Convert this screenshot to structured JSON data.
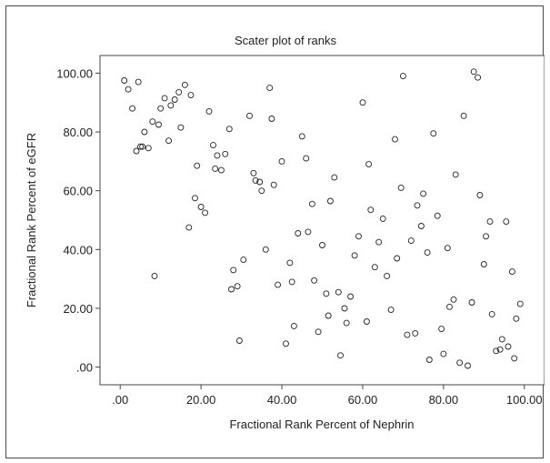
{
  "chart_data": {
    "type": "scatter",
    "title": "Scater plot of ranks",
    "xlabel": "Fractional Rank Percent of Nephrin",
    "ylabel": "Fractional Rank Percent of eGFR",
    "xlim": [
      -5,
      105
    ],
    "ylim": [
      -6,
      106
    ],
    "xticks": [
      0,
      20,
      40,
      60,
      80,
      100
    ],
    "yticks": [
      0,
      20,
      40,
      60,
      80,
      100
    ],
    "xtick_labels": [
      ".00",
      "20.00",
      "40.00",
      "60.00",
      "80.00",
      "100.00"
    ],
    "ytick_labels": [
      ".00",
      "20.00",
      "40.00",
      "60.00",
      "80.00",
      "100.00"
    ],
    "grid": false,
    "marker": "open-circle",
    "marker_color": "#222222",
    "series": [
      {
        "points": [
          [
            1,
            97.5
          ],
          [
            2,
            94.5
          ],
          [
            3,
            88
          ],
          [
            4,
            73.5
          ],
          [
            4.5,
            97
          ],
          [
            5,
            75
          ],
          [
            5.5,
            75
          ],
          [
            6,
            80
          ],
          [
            7,
            74.5
          ],
          [
            8,
            83.5
          ],
          [
            8.5,
            31
          ],
          [
            9.5,
            82.5
          ],
          [
            10,
            88
          ],
          [
            11,
            91.5
          ],
          [
            12,
            77
          ],
          [
            12.5,
            89
          ],
          [
            13.5,
            91
          ],
          [
            14.5,
            93.5
          ],
          [
            15,
            81.5
          ],
          [
            16,
            96
          ],
          [
            17,
            47.5
          ],
          [
            17.5,
            92.5
          ],
          [
            18.5,
            57.5
          ],
          [
            19,
            68.5
          ],
          [
            20,
            54.5
          ],
          [
            21,
            52.5
          ],
          [
            22,
            87
          ],
          [
            23,
            75.5
          ],
          [
            23.5,
            67.5
          ],
          [
            24,
            72
          ],
          [
            25,
            67
          ],
          [
            26,
            72.5
          ],
          [
            27,
            81
          ],
          [
            27.5,
            26.5
          ],
          [
            28,
            33
          ],
          [
            29,
            27.5
          ],
          [
            29.5,
            9
          ],
          [
            30.5,
            36.5
          ],
          [
            32,
            85.5
          ],
          [
            33,
            66
          ],
          [
            33.5,
            63.5
          ],
          [
            34.5,
            63
          ],
          [
            35,
            60
          ],
          [
            36,
            40
          ],
          [
            37,
            95
          ],
          [
            37.5,
            84.5
          ],
          [
            38,
            62
          ],
          [
            39,
            28
          ],
          [
            40,
            70
          ],
          [
            41,
            8
          ],
          [
            42,
            35.5
          ],
          [
            42.5,
            29
          ],
          [
            43,
            14
          ],
          [
            44,
            45.5
          ],
          [
            45,
            78.5
          ],
          [
            46,
            71
          ],
          [
            46.5,
            46
          ],
          [
            47.5,
            55.5
          ],
          [
            48,
            29.5
          ],
          [
            49,
            12
          ],
          [
            50,
            41.5
          ],
          [
            51,
            25
          ],
          [
            51.5,
            17.5
          ],
          [
            52,
            56.5
          ],
          [
            53,
            64.5
          ],
          [
            54,
            25.5
          ],
          [
            54.5,
            4
          ],
          [
            55.5,
            20
          ],
          [
            56,
            15
          ],
          [
            57,
            24
          ],
          [
            58,
            38
          ],
          [
            59,
            44.5
          ],
          [
            60,
            90
          ],
          [
            61,
            15.5
          ],
          [
            61.5,
            69
          ],
          [
            62,
            53.5
          ],
          [
            63,
            34
          ],
          [
            64,
            42.5
          ],
          [
            65,
            50.5
          ],
          [
            66,
            31
          ],
          [
            67,
            19.5
          ],
          [
            68,
            77.5
          ],
          [
            68.5,
            37
          ],
          [
            69.5,
            61
          ],
          [
            70,
            99
          ],
          [
            71,
            11
          ],
          [
            72,
            43
          ],
          [
            73,
            11.5
          ],
          [
            73.5,
            55
          ],
          [
            74.5,
            48
          ],
          [
            75,
            59
          ],
          [
            76,
            39
          ],
          [
            76.5,
            2.5
          ],
          [
            77.5,
            79.5
          ],
          [
            78.5,
            51.5
          ],
          [
            79.5,
            13
          ],
          [
            80,
            4.5
          ],
          [
            81,
            40.5
          ],
          [
            81.5,
            20.5
          ],
          [
            82.5,
            23
          ],
          [
            83,
            65.5
          ],
          [
            84,
            1.5
          ],
          [
            85,
            85.5
          ],
          [
            86,
            0.5
          ],
          [
            87,
            22
          ],
          [
            87.5,
            100.5
          ],
          [
            88.5,
            98.5
          ],
          [
            89,
            58.5
          ],
          [
            90,
            35
          ],
          [
            90.5,
            44.5
          ],
          [
            91.5,
            49.5
          ],
          [
            92,
            18
          ],
          [
            93,
            5.5
          ],
          [
            94,
            6
          ],
          [
            94.5,
            9.5
          ],
          [
            95.5,
            49.5
          ],
          [
            96,
            7
          ],
          [
            97,
            32.5
          ],
          [
            97.5,
            3
          ],
          [
            98,
            16.5
          ],
          [
            99,
            21.5
          ]
        ]
      }
    ]
  }
}
